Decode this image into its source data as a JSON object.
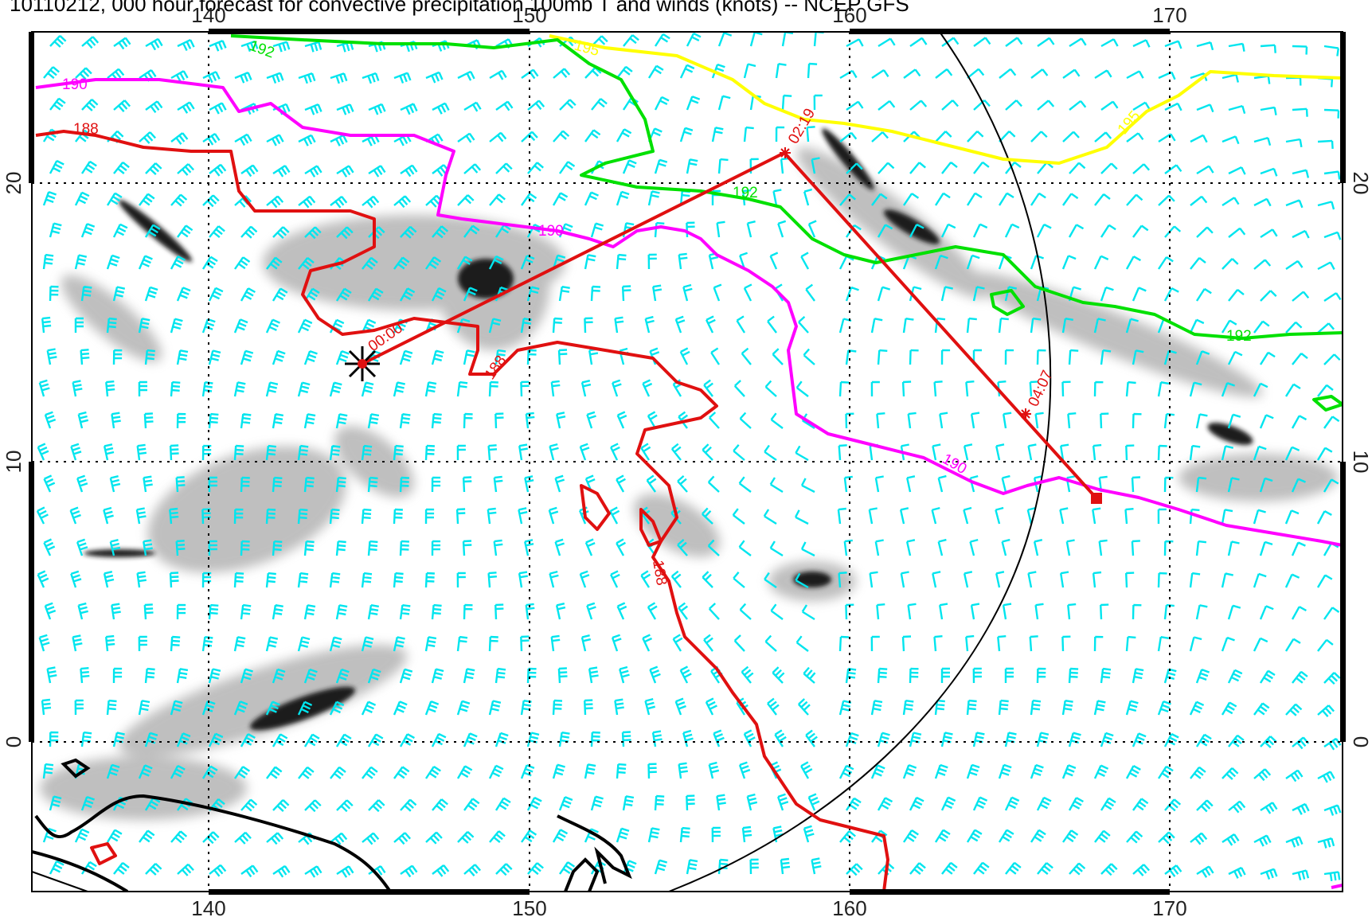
{
  "title": "10110212, 000 hour forecast for convective precipitation 100mb T and winds (knots) -- NCEP GFS",
  "axes": {
    "lon_ticks": [
      "140",
      "150",
      "160",
      "170"
    ],
    "lat_ticks": [
      "20",
      "10",
      "0"
    ]
  },
  "contours": {
    "c188": "188",
    "c190": "190",
    "c192": "192",
    "c195": "195",
    "c188_colour": "#e01010",
    "c190_colour": "#ff00ff",
    "c192_colour": "#00e000",
    "c195_colour": "#ffff00"
  },
  "track": {
    "start_label": "00:00",
    "mid_label": "02:19",
    "end_label": "04:07",
    "colour": "#e01010"
  },
  "colors": {
    "wind_barbs": "#00e5ee",
    "precip_dark": "#000000",
    "grid": "#000000",
    "coastline": "#000000"
  },
  "icons": {
    "start_marker": "asterisk-icon",
    "end_marker": "square-icon"
  }
}
